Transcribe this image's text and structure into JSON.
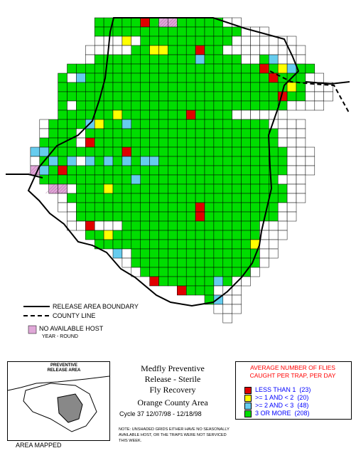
{
  "colors": {
    "less_than_1": "#e00000",
    "one_to_two": "#ffff00",
    "two_to_three": "#66ccee",
    "three_or_more": "#00dd00",
    "no_host": "#e0a8d8",
    "unshaded": "#ffffff",
    "key_title": "#ff0000",
    "key_text": "#0000ff"
  },
  "legend": {
    "release_boundary": "RELEASE AREA BOUNDARY",
    "county_line": "COUNTY LINE",
    "no_host_line1": "NO AVAILABLE HOST",
    "no_host_line2": "YEAR - ROUND"
  },
  "inset": {
    "title": "PREVENTIVE RELEASE AREA",
    "label": "AREA MAPPED"
  },
  "title": {
    "line1": "Medfly Preventive",
    "line2": "Release - Sterile",
    "line3": "Fly Recovery",
    "line4": "Orange County Area",
    "cycle": "Cycle 37   12/07/98 - 12/18/98"
  },
  "note": "NOTE: UNSHADED GRIDS EITHER HAVE NO SEASONALLY AVAILABLE HOST, OR THE TRAPS WERE NOT SERVICED THIS WEEK.",
  "key": {
    "title": "AVERAGE NUMBER OF FLIES CAUGHT PER TRAP, PER DAY",
    "items": [
      {
        "label": "LESS THAN 1",
        "count": "(23)"
      },
      {
        "label": ">= 1 AND < 2",
        "count": "(20)"
      },
      {
        "label": ">= 2 AND < 3",
        "count": "(48)"
      },
      {
        "label": "3 OR MORE",
        "count": "(208)"
      }
    ]
  },
  "grid": {
    "rows": [
      {
        "row": 0,
        "startCol": 8,
        "cells": "GGGGGrGhhGGGGGww"
      },
      {
        "row": 1,
        "startCol": 8,
        "cells": "GGGGGGGGGGGGGGGGwwW"
      },
      {
        "row": 2,
        "startCol": 8,
        "cells": "wwwywGGGGGGGGGGwwwwwwW"
      },
      {
        "row": 3,
        "startCol": 7,
        "cells": "wwwwwGGyyGGGrGGwwwwwwwwW"
      },
      {
        "row": 4,
        "startCol": 7,
        "cells": "wGGGGGGGGGGGcGGGGwwGcwww"
      },
      {
        "row": 5,
        "startCol": 5,
        "cells": "GGGGGGGGGGGGGGGGGGGGGrGycGG"
      },
      {
        "row": 6,
        "startCol": 4,
        "cells": "GwcGGGGGGGGGGGGGGGGGGGGrGGGww"
      },
      {
        "row": 7,
        "startCol": 4,
        "cells": "GGGGGGGGGGGGGGGGGGGGGGGGGyGwww"
      },
      {
        "row": 8,
        "startCol": 4,
        "cells": "GGGGGGGGGGGGGGGGGGGGGGGGrGGwww"
      },
      {
        "row": 9,
        "startCol": 4,
        "cells": "GwGGGGGGGGGGGGGGGGGGGGGGGwwww"
      },
      {
        "row": 10,
        "startCol": 4,
        "cells": "GGGGGGyGGGGGGGrGGGGwwwwww"
      },
      {
        "row": 11,
        "startCol": 2,
        "cells": "wGGGGcyGGcGGGGGGGGGGGGGGGwwww"
      },
      {
        "row": 12,
        "startCol": 2,
        "cells": "wGGGwGGGGGGGGGGGGGGGGGGGGGwww"
      },
      {
        "row": 13,
        "startCol": 2,
        "cells": "GGGGwrGGGGGGGGGGGGGGGGGGGGwww"
      },
      {
        "row": 14,
        "startCol": 1,
        "cells": "ccGGGGGGGGrGGGGGGGGGGGGGGGGGwww"
      },
      {
        "row": 15,
        "startCol": 1,
        "cells": "wGcGcwcGcGcGccGGGGGGGGGGGGGGwww"
      },
      {
        "row": 16,
        "startCol": 1,
        "cells": "hcGrGGGGGGGGGGGGGGGGGGGGGGGGwww"
      },
      {
        "row": 17,
        "startCol": 2,
        "cells": "GGGGGGGGGGcGGGGGGGGGGGGGGGwww"
      },
      {
        "row": 18,
        "startCol": 3,
        "cells": "hhwGGGyGGGGGGGGGGGGGGGGGGGww"
      },
      {
        "row": 19,
        "startCol": 4,
        "cells": "wGGGGGGGGGGGGGGGGGGGGGGGGww"
      },
      {
        "row": 20,
        "startCol": 4,
        "cells": "wwGGGGGGGGGGGGGrGGGGGGGGww"
      },
      {
        "row": 21,
        "startCol": 5,
        "cells": "wGGGGGGGGGGGGGrGGGGGGGGww"
      },
      {
        "row": 22,
        "startCol": 5,
        "cells": "wwrwwwGGGGGGGGGGGGGGGwww"
      },
      {
        "row": 23,
        "startCol": 7,
        "cells": "GGyGGGGGGGGGGGGGGGGwww"
      },
      {
        "row": 24,
        "startCol": 8,
        "cells": "GGGGGGGGGGGGGGGGGyww"
      },
      {
        "row": 25,
        "startCol": 10,
        "cells": "cwGGGGGGGGGGGGGGww"
      },
      {
        "row": 26,
        "startCol": 11,
        "cells": "wGGGGGGGGGGGGGGw"
      },
      {
        "row": 27,
        "startCol": 12,
        "cells": "wGGGGGGGGGGGGw"
      },
      {
        "row": 28,
        "startCol": 14,
        "cells": "rGGGGGGcGww"
      },
      {
        "row": 29,
        "startCol": 17,
        "cells": "rGGGwww"
      },
      {
        "row": 30,
        "startCol": 20,
        "cells": "Gcww"
      },
      {
        "row": 31,
        "startCol": 21,
        "cells": "www"
      },
      {
        "row": 32,
        "startCol": 22,
        "cells": "w"
      }
    ]
  }
}
